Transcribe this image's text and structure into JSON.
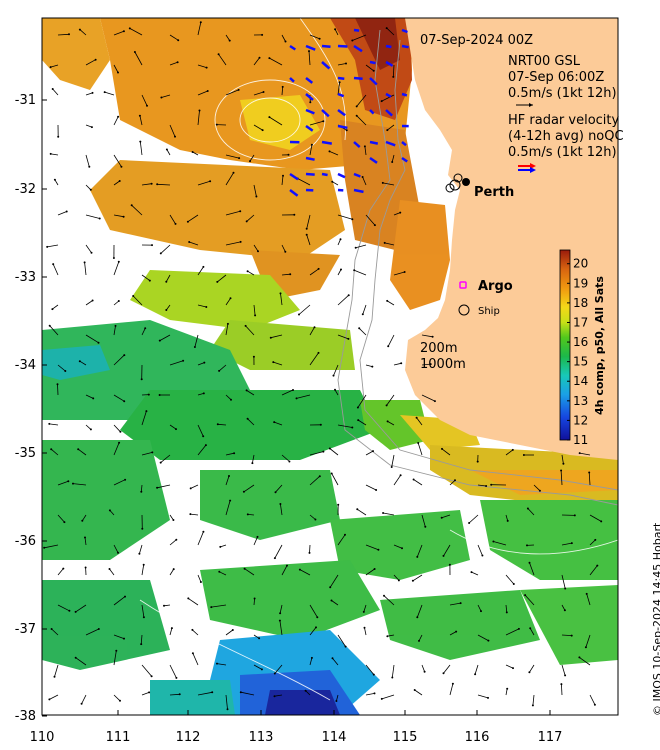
{
  "header": {
    "datetime": "07-Sep-2024 00Z",
    "model_line1": "NRT00 GSL",
    "model_line2": "07-Sep 06:00Z",
    "model_scale": "0.5m/s (1kt 12h)",
    "hf_line1": "HF radar velocity",
    "hf_line2": "(4-12h avg) noQC",
    "hf_scale": "0.5m/s (1kt 12h)"
  },
  "places": {
    "perth": "Perth",
    "argo": "Argo",
    "ship": "Ship"
  },
  "depth_labels": {
    "d200": "200m",
    "d1000": "1000m"
  },
  "axes": {
    "x_ticks": [
      "110",
      "111",
      "112",
      "113",
      "114",
      "115",
      "116",
      "117"
    ],
    "y_ticks": [
      "-31",
      "-32",
      "-33",
      "-34",
      "-35",
      "-36",
      "-37",
      "-38"
    ]
  },
  "colorbar": {
    "label": "4h comp, p50, All Sats",
    "ticks": [
      "11",
      "12",
      "13",
      "14",
      "15",
      "16",
      "17",
      "18",
      "19",
      "20"
    ],
    "min": 11,
    "max": 20.7
  },
  "credit": "© IMOS 10-Sep-2024 14:45 Hobart",
  "colors": {
    "land": "#fccb98",
    "hf_arrow_red": "#ff0000",
    "hf_arrow_blue": "#0000ff",
    "argo_marker": "#ff00ff"
  }
}
